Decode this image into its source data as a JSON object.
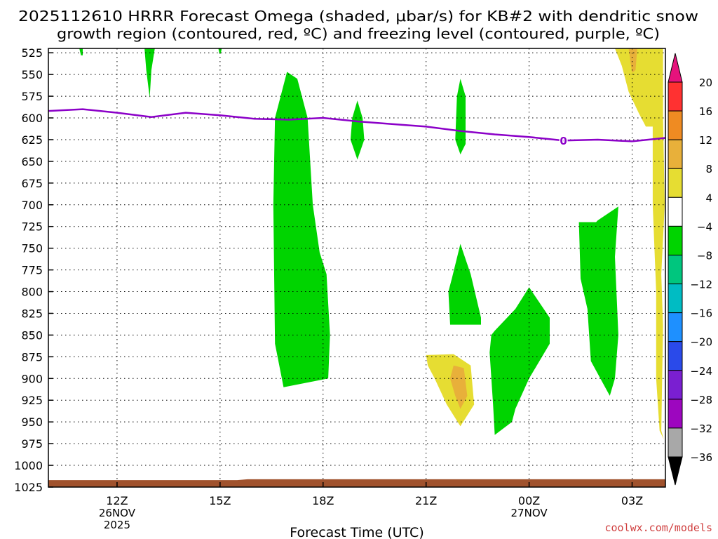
{
  "chart_data": {
    "type": "heatmap",
    "title": "2025112610 HRRR Forecast Omega (shaded, μbar/s) for KB#2 with dendritic snow",
    "subtitle": "growth region (contoured, red, ºC) and freezing level (contoured, purple, ºC)",
    "xlabel": "Forecast Time (UTC)",
    "ylabel": "",
    "credit": "coolwx.com/models",
    "x_ticks": [
      {
        "hour": 12,
        "label": "12Z",
        "date1": "26NOV",
        "date2": "2025"
      },
      {
        "hour": 15,
        "label": "15Z",
        "date1": "",
        "date2": ""
      },
      {
        "hour": 18,
        "label": "18Z",
        "date1": "",
        "date2": ""
      },
      {
        "hour": 21,
        "label": "21Z",
        "date1": "",
        "date2": ""
      },
      {
        "hour": 24,
        "label": "00Z",
        "date1": "27NOV",
        "date2": ""
      },
      {
        "hour": 27,
        "label": "03Z",
        "date1": "",
        "date2": ""
      }
    ],
    "xlim": [
      10,
      27.97
    ],
    "y_ticks": [
      525,
      550,
      575,
      600,
      625,
      650,
      675,
      700,
      725,
      750,
      775,
      800,
      825,
      850,
      875,
      900,
      925,
      950,
      975,
      1000,
      1025
    ],
    "ylim": [
      1025,
      520
    ],
    "colorbar": {
      "labels": [
        "20",
        "16",
        "12",
        "8",
        "4",
        "−4",
        "−8",
        "−12",
        "−16",
        "−20",
        "−24",
        "−28",
        "−32",
        "−36"
      ],
      "colors": [
        "#ff3131",
        "#ef8b22",
        "#e8b03a",
        "#e6dd32",
        "#ffffff",
        "#00d400",
        "#00c67e",
        "#00bcc3",
        "#1e90ff",
        "#2a4aea",
        "#7a1fd1",
        "#9d06bf",
        "#a8a8a8"
      ],
      "top_arrow_color": "#e6137c",
      "bottom_arrow_color": "#000000"
    },
    "freezing_level": {
      "label": "0",
      "color": "#8b00c8",
      "points": [
        [
          10,
          592
        ],
        [
          11,
          590
        ],
        [
          12,
          594
        ],
        [
          13,
          599
        ],
        [
          14,
          594
        ],
        [
          15,
          597
        ],
        [
          16,
          601
        ],
        [
          17,
          602
        ],
        [
          18,
          600
        ],
        [
          19,
          604
        ],
        [
          20,
          607
        ],
        [
          21,
          610
        ],
        [
          22,
          615
        ],
        [
          23,
          619
        ],
        [
          24,
          622
        ],
        [
          25,
          626
        ],
        [
          26,
          625
        ],
        [
          27,
          627
        ],
        [
          27.97,
          623
        ]
      ]
    },
    "omega_regions": [
      {
        "name": "omega-green-17z",
        "color": "#00d400",
        "points": [
          [
            16.95,
            547
          ],
          [
            17.25,
            555
          ],
          [
            17.55,
            600
          ],
          [
            17.7,
            700
          ],
          [
            17.9,
            755
          ],
          [
            18.1,
            780
          ],
          [
            18.2,
            850
          ],
          [
            18.15,
            900
          ],
          [
            17.5,
            905
          ],
          [
            16.85,
            910
          ],
          [
            16.6,
            860
          ],
          [
            16.55,
            700
          ],
          [
            16.6,
            600
          ]
        ]
      },
      {
        "name": "omega-green-19z",
        "color": "#00d400",
        "points": [
          [
            19.0,
            580
          ],
          [
            19.15,
            600
          ],
          [
            19.2,
            625
          ],
          [
            19.0,
            648
          ],
          [
            18.8,
            625
          ],
          [
            18.85,
            600
          ]
        ]
      },
      {
        "name": "omega-green-22z-upper",
        "color": "#00d400",
        "points": [
          [
            22.0,
            555
          ],
          [
            22.15,
            575
          ],
          [
            22.15,
            630
          ],
          [
            22.0,
            642
          ],
          [
            21.85,
            625
          ],
          [
            21.9,
            575
          ]
        ]
      },
      {
        "name": "omega-green-22z-lower",
        "color": "#00d400",
        "points": [
          [
            22.0,
            745
          ],
          [
            22.3,
            780
          ],
          [
            22.6,
            830
          ],
          [
            22.6,
            838
          ],
          [
            21.7,
            838
          ],
          [
            21.65,
            800
          ],
          [
            21.75,
            785
          ]
        ]
      },
      {
        "name": "omega-yellow-21z",
        "color": "#e6dd32",
        "points": [
          [
            21.0,
            873
          ],
          [
            21.8,
            872
          ],
          [
            22.3,
            885
          ],
          [
            22.4,
            930
          ],
          [
            22.0,
            955
          ],
          [
            21.6,
            930
          ],
          [
            21.25,
            900
          ],
          [
            21.05,
            885
          ]
        ]
      },
      {
        "name": "omega-orange-22z",
        "color": "#e8b03a",
        "points": [
          [
            21.8,
            885
          ],
          [
            22.1,
            888
          ],
          [
            22.2,
            920
          ],
          [
            22.0,
            935
          ],
          [
            21.85,
            920
          ],
          [
            21.7,
            900
          ]
        ]
      },
      {
        "name": "omega-green-23z",
        "color": "#00d400",
        "points": [
          [
            23.0,
            845
          ],
          [
            23.6,
            820
          ],
          [
            24.0,
            795
          ],
          [
            24.6,
            830
          ],
          [
            24.6,
            860
          ],
          [
            24.0,
            900
          ],
          [
            23.6,
            935
          ],
          [
            23.5,
            950
          ],
          [
            23.0,
            965
          ],
          [
            22.95,
            930
          ],
          [
            22.85,
            870
          ],
          [
            22.9,
            850
          ]
        ]
      },
      {
        "name": "omega-green-02z",
        "color": "#00d400",
        "points": [
          [
            25.95,
            720
          ],
          [
            26.0,
            718
          ],
          [
            26.6,
            702
          ],
          [
            26.5,
            760
          ],
          [
            26.6,
            850
          ],
          [
            26.5,
            900
          ],
          [
            26.35,
            920
          ],
          [
            25.8,
            880
          ],
          [
            25.7,
            820
          ],
          [
            25.5,
            785
          ],
          [
            25.45,
            720
          ]
        ]
      },
      {
        "name": "omega-yellow-03z",
        "color": "#e6dd32",
        "points": [
          [
            26.5,
            520
          ],
          [
            27.9,
            520
          ],
          [
            27.9,
            600
          ],
          [
            27.7,
            610
          ],
          [
            27.4,
            610
          ],
          [
            27.2,
            595
          ],
          [
            26.9,
            570
          ],
          [
            26.7,
            540
          ]
        ]
      },
      {
        "name": "omega-yellow-right-edge",
        "color": "#e6dd32",
        "points": [
          [
            27.6,
            610
          ],
          [
            27.9,
            600
          ],
          [
            27.95,
            700
          ],
          [
            27.85,
            780
          ],
          [
            27.9,
            840
          ],
          [
            27.85,
            960
          ],
          [
            27.92,
            970
          ],
          [
            27.8,
            960
          ],
          [
            27.7,
            900
          ],
          [
            27.7,
            800
          ],
          [
            27.6,
            700
          ]
        ]
      },
      {
        "name": "omega-orange-03z",
        "color": "#e8b03a",
        "points": [
          [
            26.9,
            520
          ],
          [
            27.15,
            520
          ],
          [
            27.1,
            545
          ],
          [
            27.0,
            548
          ],
          [
            26.95,
            535
          ]
        ]
      },
      {
        "name": "omega-green-spike-13z",
        "color": "#00d400",
        "points": [
          [
            12.8,
            520
          ],
          [
            13.1,
            520
          ],
          [
            13.0,
            545
          ],
          [
            12.95,
            577
          ],
          [
            12.85,
            545
          ]
        ]
      },
      {
        "name": "omega-green-dot-11z",
        "color": "#00d400",
        "points": [
          [
            10.9,
            520
          ],
          [
            11.0,
            520
          ],
          [
            11.0,
            528
          ],
          [
            10.95,
            528
          ]
        ]
      },
      {
        "name": "omega-green-dot-15z",
        "color": "#00d400",
        "points": [
          [
            14.95,
            520
          ],
          [
            15.05,
            520
          ],
          [
            15.02,
            526
          ],
          [
            14.98,
            526
          ]
        ]
      }
    ],
    "surface": {
      "name": "terrain",
      "color": "#a0522d",
      "points": [
        [
          10,
          1017
        ],
        [
          15.5,
          1017
        ],
        [
          15.8,
          1016
        ],
        [
          27.97,
          1016
        ],
        [
          27.97,
          1030
        ],
        [
          10,
          1030
        ]
      ]
    }
  }
}
